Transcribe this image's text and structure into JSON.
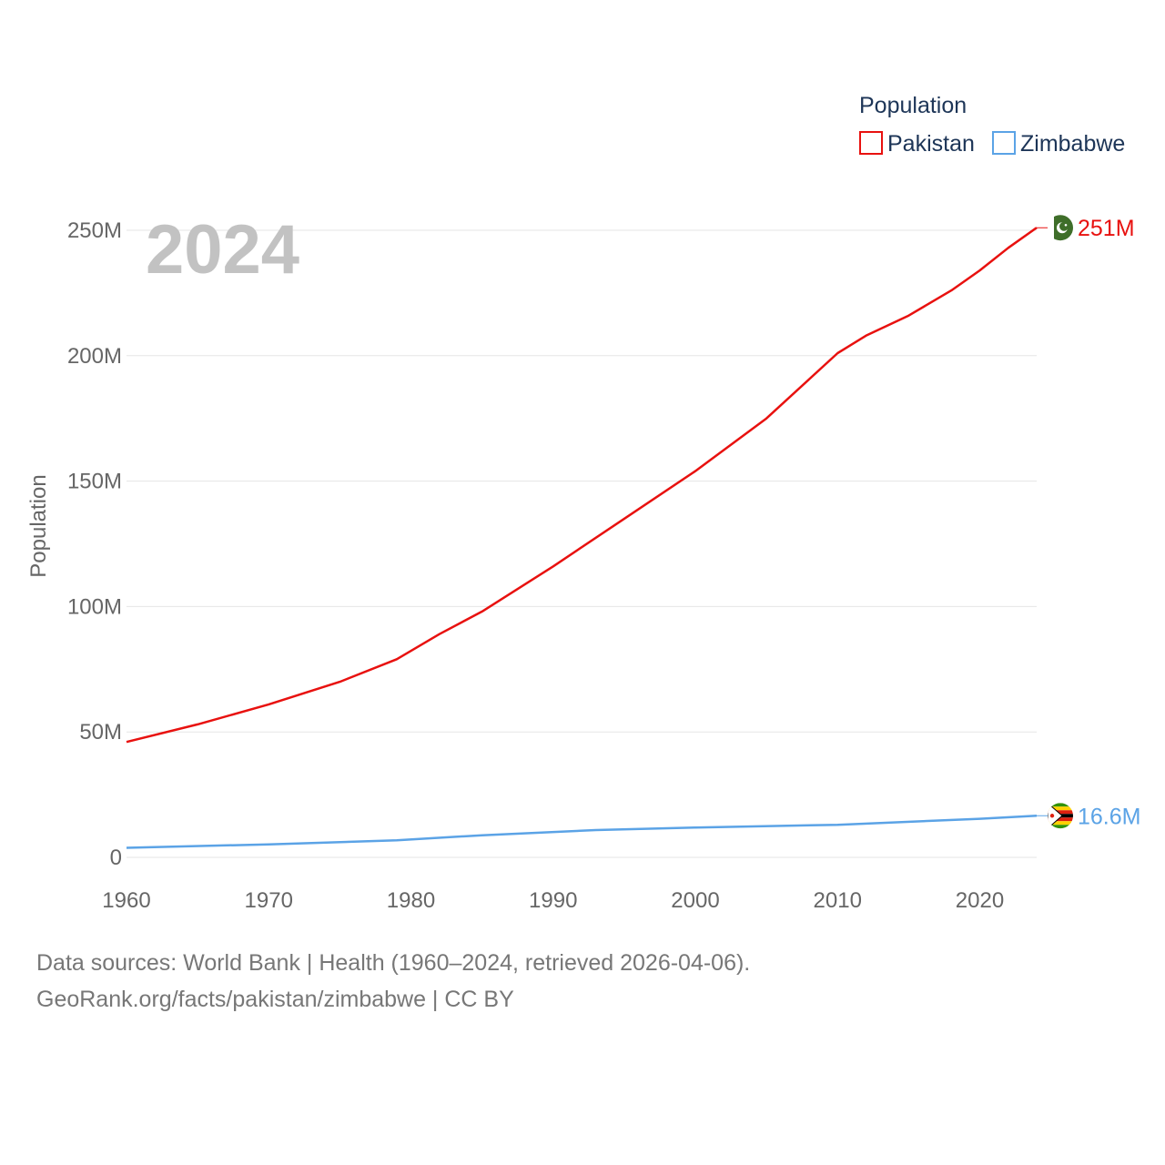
{
  "chart_data": {
    "type": "line",
    "year_label": "2024",
    "ylabel": "Population",
    "legend_title": "Population",
    "xlim": [
      1960,
      2024
    ],
    "ylim": [
      0,
      250000000
    ],
    "x_ticks": [
      1960,
      1970,
      1980,
      1990,
      2000,
      2010,
      2020
    ],
    "x_tick_labels": [
      "1960",
      "1970",
      "1980",
      "1990",
      "2000",
      "2010",
      "2020"
    ],
    "y_ticks": [
      0,
      50000000,
      100000000,
      150000000,
      200000000,
      250000000
    ],
    "y_tick_labels": [
      "0",
      "50M",
      "100M",
      "150M",
      "200M",
      "250M"
    ],
    "grid": true,
    "legend_position": "top-right",
    "series": [
      {
        "name": "Pakistan",
        "color": "#e8110f",
        "end_label": "251M",
        "flag_icon": "pakistan-flag-icon",
        "x": [
          1960,
          1965,
          1970,
          1975,
          1979,
          1982,
          1985,
          1990,
          1995,
          2000,
          2005,
          2010,
          2012,
          2015,
          2018,
          2020,
          2022,
          2024
        ],
        "values": [
          46000000,
          53000000,
          61000000,
          70000000,
          79000000,
          89000000,
          98000000,
          116000000,
          135000000,
          154000000,
          175000000,
          201000000,
          208000000,
          216000000,
          226000000,
          234000000,
          243000000,
          251000000
        ]
      },
      {
        "name": "Zimbabwe",
        "color": "#5ba3e6",
        "end_label": "16.6M",
        "flag_icon": "zimbabwe-flag-icon",
        "x": [
          1960,
          1970,
          1979,
          1985,
          1993,
          2000,
          2010,
          2020,
          2024
        ],
        "values": [
          3800000,
          5200000,
          6800000,
          8800000,
          10900000,
          11900000,
          13000000,
          15400000,
          16600000
        ]
      }
    ]
  },
  "footer": {
    "line1": "Data sources: World Bank | Health (1960–2024, retrieved 2026-04-06).",
    "line2": "GeoRank.org/facts/pakistan/zimbabwe | CC BY"
  }
}
